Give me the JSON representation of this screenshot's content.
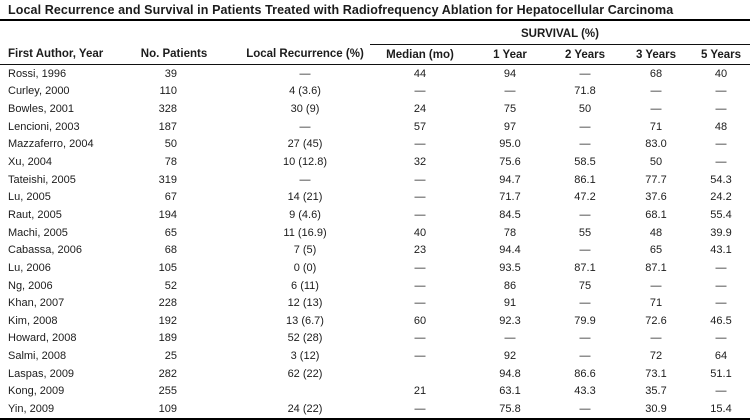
{
  "table": {
    "title": "Local Recurrence and Survival in Patients Treated with Radiofrequency Ablation for Hepatocellular Carcinoma",
    "survival_group_header": "SURVIVAL (%)",
    "columns": [
      "First Author, Year",
      "No. Patients",
      "Local Recurrence (%)",
      "Median (mo)",
      "1 Year",
      "2 Years",
      "3 Years",
      "5 Years"
    ],
    "rows": [
      [
        "Rossi, 1996",
        "39",
        "—",
        "44",
        "94",
        "—",
        "68",
        "40"
      ],
      [
        "Curley, 2000",
        "110",
        "4 (3.6)",
        "—",
        "—",
        "71.8",
        "—",
        "—"
      ],
      [
        "Bowles, 2001",
        "328",
        "30 (9)",
        "24",
        "75",
        "50",
        "—",
        "—"
      ],
      [
        "Lencioni, 2003",
        "187",
        "—",
        "57",
        "97",
        "—",
        "71",
        "48"
      ],
      [
        "Mazzaferro, 2004",
        "50",
        "27 (45)",
        "—",
        "95.0",
        "—",
        "83.0",
        "—"
      ],
      [
        "Xu, 2004",
        "78",
        "10 (12.8)",
        "32",
        "75.6",
        "58.5",
        "50",
        "—"
      ],
      [
        "Tateishi, 2005",
        "319",
        "—",
        "—",
        "94.7",
        "86.1",
        "77.7",
        "54.3"
      ],
      [
        "Lu, 2005",
        "67",
        "14 (21)",
        "—",
        "71.7",
        "47.2",
        "37.6",
        "24.2"
      ],
      [
        "Raut, 2005",
        "194",
        "9 (4.6)",
        "—",
        "84.5",
        "—",
        "68.1",
        "55.4"
      ],
      [
        "Machi, 2005",
        "65",
        "11 (16.9)",
        "40",
        "78",
        "55",
        "48",
        "39.9"
      ],
      [
        "Cabassa, 2006",
        "68",
        "7 (5)",
        "23",
        "94.4",
        "—",
        "65",
        "43.1"
      ],
      [
        "Lu, 2006",
        "105",
        "0 (0)",
        "—",
        "93.5",
        "87.1",
        "87.1",
        "—"
      ],
      [
        "Ng, 2006",
        "52",
        "6 (11)",
        "—",
        "86",
        "75",
        "—",
        "—"
      ],
      [
        "Khan, 2007",
        "228",
        "12 (13)",
        "—",
        "91",
        "—",
        "71",
        "—"
      ],
      [
        "Kim, 2008",
        "192",
        "13 (6.7)",
        "60",
        "92.3",
        "79.9",
        "72.6",
        "46.5"
      ],
      [
        "Howard, 2008",
        "189",
        "52 (28)",
        "—",
        "—",
        "—",
        "—",
        "—"
      ],
      [
        "Salmi, 2008",
        "25",
        "3 (12)",
        "—",
        "92",
        "—",
        "72",
        "64"
      ],
      [
        "Laspas, 2009",
        "282",
        "62 (22)",
        "",
        "94.8",
        "86.6",
        "73.1",
        "51.1"
      ],
      [
        "Kong, 2009",
        "255",
        "",
        "21",
        "63.1",
        "43.3",
        "35.7",
        "—"
      ],
      [
        "Yin, 2009",
        "109",
        "24 (22)",
        "—",
        "75.8",
        "—",
        "30.9",
        "15.4"
      ]
    ]
  },
  "colors": {
    "text": "#1c1c1c",
    "rule": "#000000",
    "background": "#ffffff"
  }
}
